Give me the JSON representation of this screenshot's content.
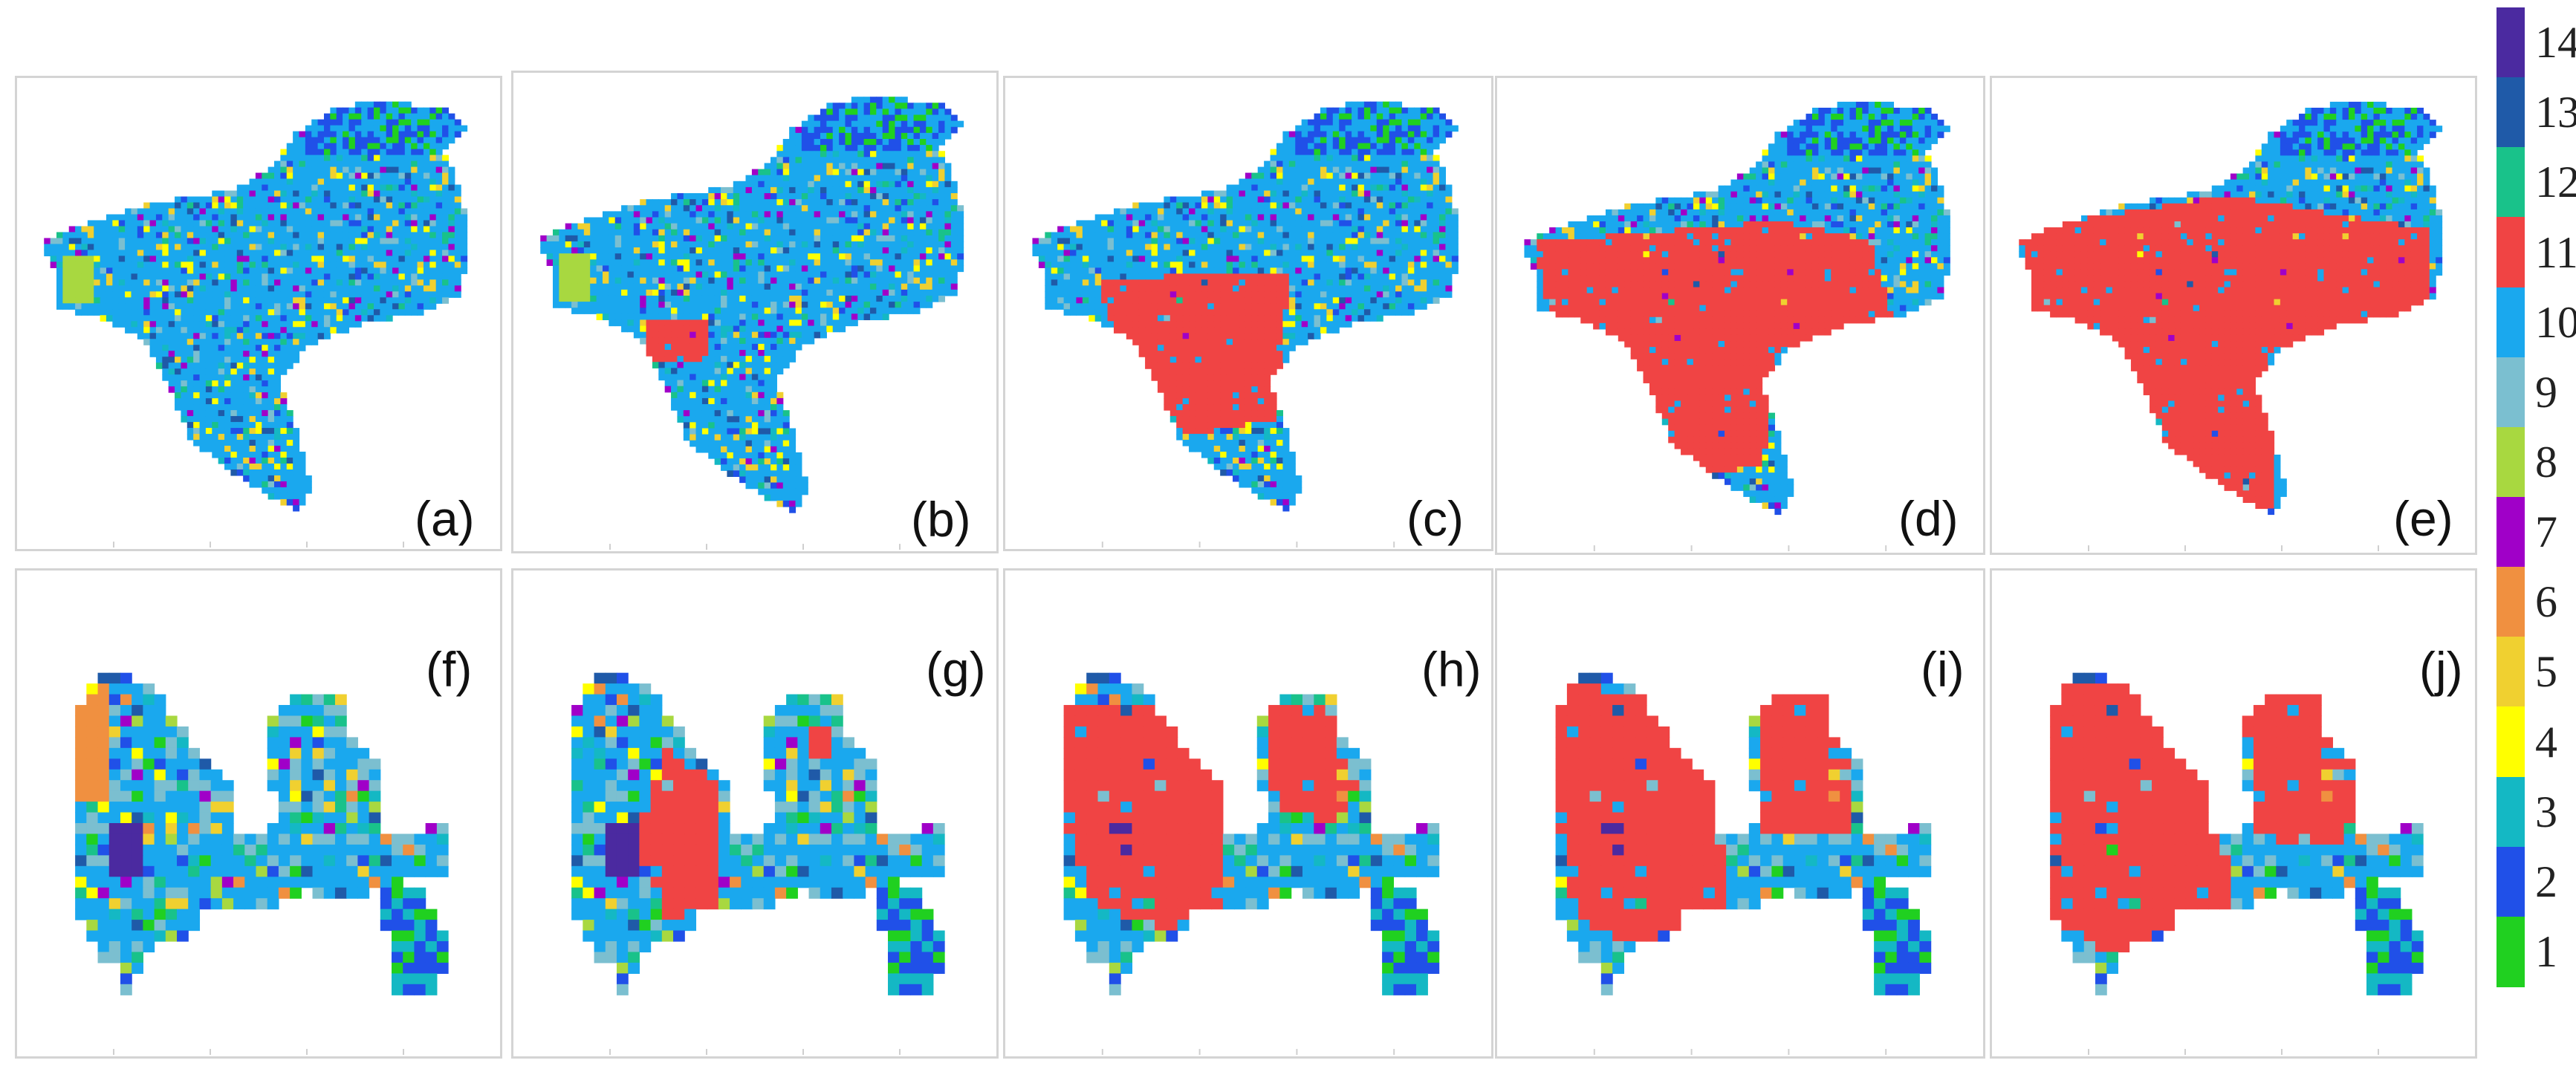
{
  "legend": {
    "classes": [
      {
        "value": "14",
        "color": "#4b2aa0"
      },
      {
        "value": "13",
        "color": "#1f5aa8"
      },
      {
        "value": "12",
        "color": "#19c28a"
      },
      {
        "value": "11",
        "color": "#f04444"
      },
      {
        "value": "10",
        "color": "#1aa8ee"
      },
      {
        "value": "9",
        "color": "#7bbfd0"
      },
      {
        "value": "8",
        "color": "#a8d840"
      },
      {
        "value": "7",
        "color": "#a000c8"
      },
      {
        "value": "6",
        "color": "#f09040"
      },
      {
        "value": "5",
        "color": "#f0d030"
      },
      {
        "value": "4",
        "color": "#ffff00"
      },
      {
        "value": "3",
        "color": "#14b8c4"
      },
      {
        "value": "2",
        "color": "#2050e8"
      },
      {
        "value": "1",
        "color": "#20d020"
      }
    ]
  },
  "panels": [
    {
      "label": "(a)",
      "region": "top",
      "stage": 0
    },
    {
      "label": "(b)",
      "region": "top",
      "stage": 1
    },
    {
      "label": "(c)",
      "region": "top",
      "stage": 2
    },
    {
      "label": "(d)",
      "region": "top",
      "stage": 3
    },
    {
      "label": "(e)",
      "region": "top",
      "stage": 4
    },
    {
      "label": "(f)",
      "region": "bottom",
      "stage": 0
    },
    {
      "label": "(g)",
      "region": "bottom",
      "stage": 1
    },
    {
      "label": "(h)",
      "region": "bottom",
      "stage": 2
    },
    {
      "label": "(i)",
      "region": "bottom",
      "stage": 3
    },
    {
      "label": "(j)",
      "region": "bottom",
      "stage": 4
    }
  ]
}
